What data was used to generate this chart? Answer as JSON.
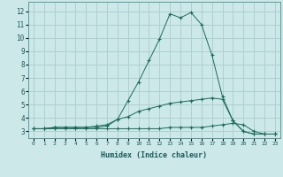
{
  "xlabel": "Humidex (Indice chaleur)",
  "bg_color": "#cce8e8",
  "grid_color": "#aacccc",
  "line_color": "#1a6b5a",
  "x_ticks": [
    0,
    1,
    2,
    3,
    4,
    5,
    6,
    7,
    8,
    9,
    10,
    11,
    12,
    13,
    14,
    15,
    16,
    17,
    18,
    19,
    20,
    21,
    22,
    23
  ],
  "y_ticks": [
    3,
    4,
    5,
    6,
    7,
    8,
    9,
    10,
    11,
    12
  ],
  "ylim": [
    2.5,
    12.7
  ],
  "xlim": [
    -0.5,
    23.5
  ],
  "series": [
    [
      3.2,
      3.2,
      3.3,
      3.3,
      3.3,
      3.3,
      3.3,
      3.4,
      3.9,
      5.3,
      6.7,
      8.3,
      9.9,
      11.8,
      11.5,
      11.9,
      11.0,
      8.7,
      5.6,
      3.8,
      3.0,
      2.8,
      2.8,
      2.8
    ],
    [
      3.2,
      3.2,
      3.3,
      3.3,
      3.3,
      3.3,
      3.4,
      3.5,
      3.9,
      4.1,
      4.5,
      4.7,
      4.9,
      5.1,
      5.2,
      5.3,
      5.4,
      5.5,
      5.4,
      3.8,
      3.0,
      2.8,
      2.8,
      2.8
    ],
    [
      3.2,
      3.2,
      3.2,
      3.2,
      3.2,
      3.2,
      3.2,
      3.2,
      3.2,
      3.2,
      3.2,
      3.2,
      3.2,
      3.3,
      3.3,
      3.3,
      3.3,
      3.4,
      3.5,
      3.6,
      3.5,
      3.0,
      2.8,
      2.8
    ]
  ]
}
